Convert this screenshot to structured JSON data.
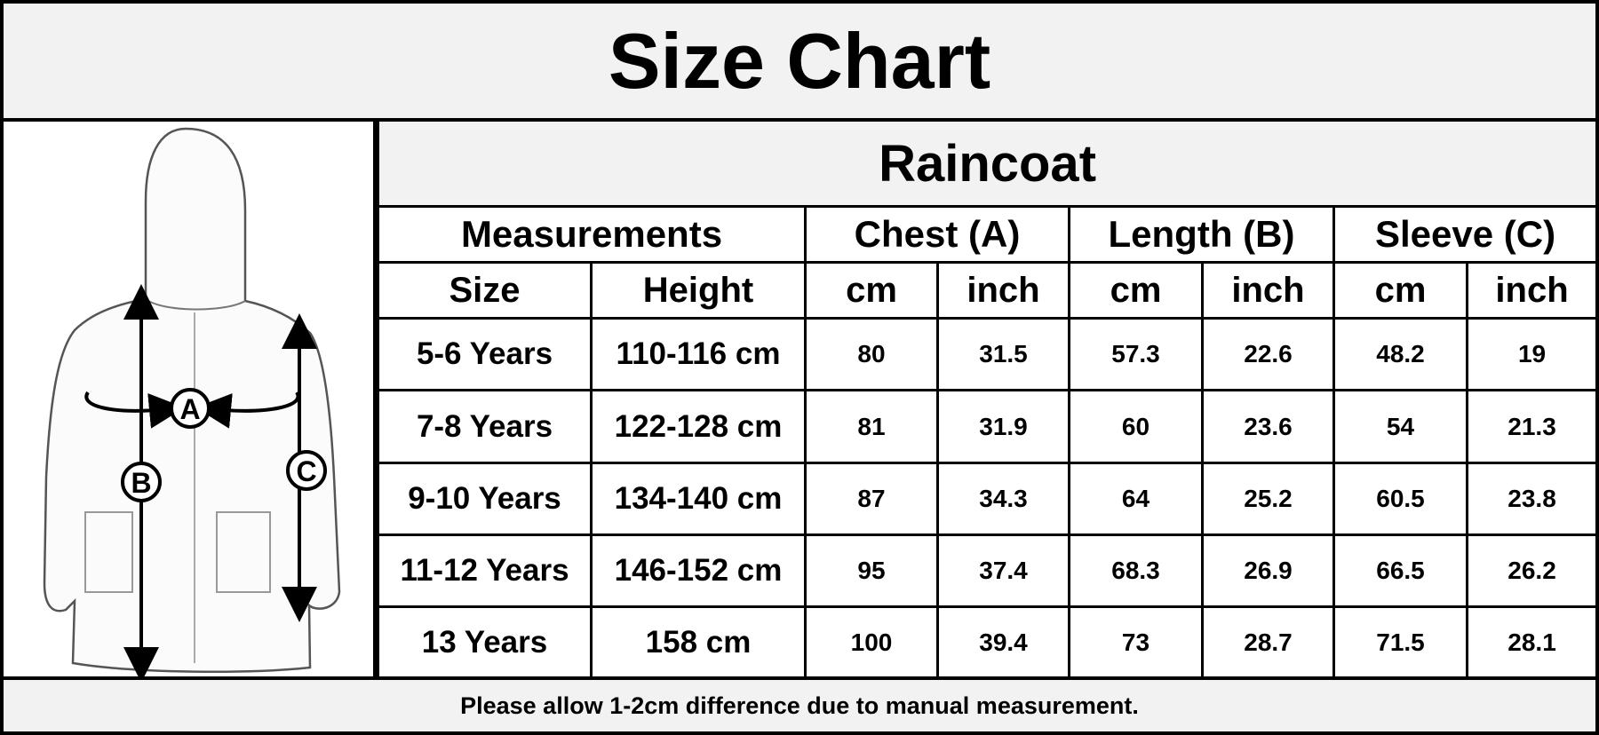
{
  "header": {
    "title": "Size Chart"
  },
  "figure": {
    "labels": [
      "A",
      "B",
      "C"
    ]
  },
  "table": {
    "title": "Raincoat",
    "groups": [
      "Measurements",
      "Chest (A)",
      "Length (B)",
      "Sleeve (C)"
    ],
    "columns": [
      "Size",
      "Height",
      "cm",
      "inch",
      "cm",
      "inch",
      "cm",
      "inch"
    ],
    "rows": [
      [
        "5-6 Years",
        "110-116 cm",
        "80",
        "31.5",
        "57.3",
        "22.6",
        "48.2",
        "19"
      ],
      [
        "7-8 Years",
        "122-128 cm",
        "81",
        "31.9",
        "60",
        "23.6",
        "54",
        "21.3"
      ],
      [
        "9-10 Years",
        "134-140 cm",
        "87",
        "34.3",
        "64",
        "25.2",
        "60.5",
        "23.8"
      ],
      [
        "11-12 Years",
        "146-152 cm",
        "95",
        "37.4",
        "68.3",
        "26.9",
        "66.5",
        "26.2"
      ],
      [
        "13 Years",
        "158 cm",
        "100",
        "39.4",
        "73",
        "28.7",
        "71.5",
        "28.1"
      ]
    ]
  },
  "footer": {
    "note": "Please allow 1-2cm difference due to manual measurement."
  }
}
